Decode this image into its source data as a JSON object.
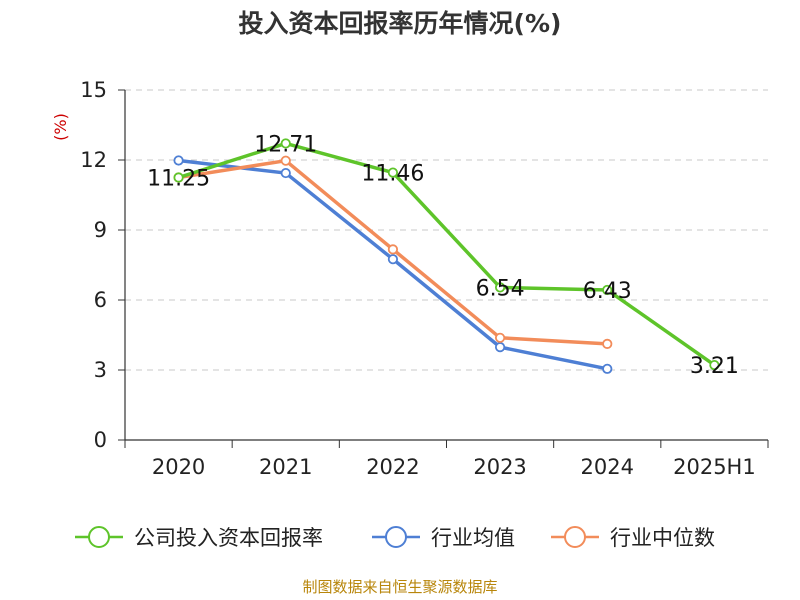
{
  "chart_data": {
    "type": "line",
    "title": "投入资本回报率历年情况(%)",
    "ylabel": "(%)",
    "xlabel": "",
    "categories": [
      "2020",
      "2021",
      "2022",
      "2023",
      "2024",
      "2025H1"
    ],
    "ylim": [
      0,
      15
    ],
    "yticks": [
      0,
      3,
      6,
      9,
      12,
      15
    ],
    "grid": true,
    "legend_position": "bottom",
    "series": [
      {
        "name": "公司投入资本回报率",
        "color": "#5ec42a",
        "values": [
          11.25,
          12.71,
          11.46,
          6.54,
          6.43,
          3.21
        ],
        "show_labels": true
      },
      {
        "name": "行业均值",
        "color": "#4e7fd4",
        "values": [
          11.98,
          11.44,
          7.75,
          3.98,
          3.05,
          null
        ],
        "show_labels": false
      },
      {
        "name": "行业中位数",
        "color": "#f28c5a",
        "values": [
          11.25,
          11.97,
          8.17,
          4.38,
          4.12,
          null
        ],
        "show_labels": false
      }
    ]
  },
  "source": "制图数据来自恒生聚源数据库"
}
